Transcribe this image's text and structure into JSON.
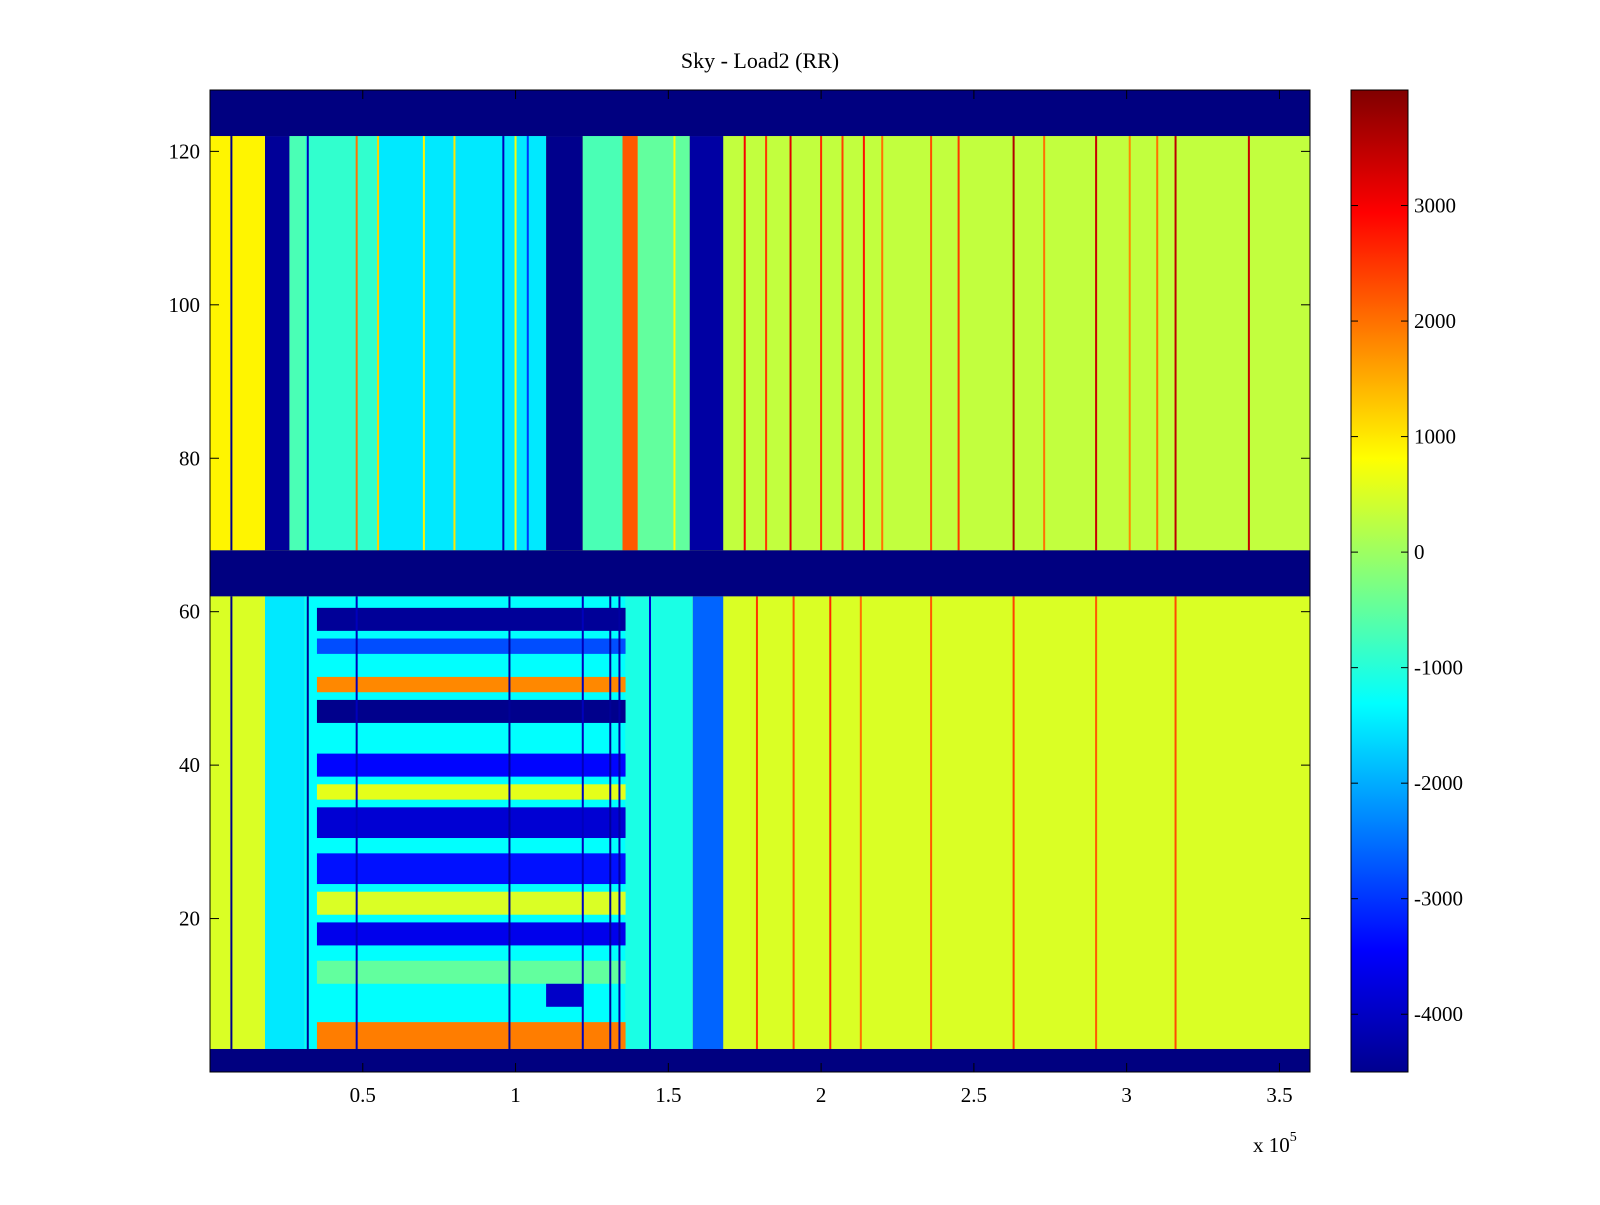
{
  "chart_data": {
    "type": "heatmap",
    "title": "Sky - Load2 (RR)",
    "xlabel": "",
    "ylabel": "",
    "x_exponent_label": "x 10",
    "x_exponent_power": "5",
    "xlim": [
      0,
      3.6
    ],
    "ylim": [
      0,
      128
    ],
    "x_ticks": [
      0.5,
      1,
      1.5,
      2,
      2.5,
      3,
      3.5
    ],
    "x_tick_labels": [
      "0.5",
      "1",
      "1.5",
      "2",
      "2.5",
      "3",
      "3.5"
    ],
    "y_ticks": [
      20,
      40,
      60,
      80,
      100,
      120
    ],
    "y_tick_labels": [
      "20",
      "40",
      "60",
      "80",
      "100",
      "120"
    ],
    "colorbar": {
      "colormap": "jet",
      "limits": [
        -4500,
        4000
      ],
      "ticks": [
        3000,
        2000,
        1000,
        0,
        -1000,
        -2000,
        -3000,
        -4000
      ],
      "tick_labels": [
        "3000",
        "2000",
        "1000",
        "0",
        "-1000",
        "-2000",
        "-3000",
        "-4000"
      ]
    },
    "background_value": 400,
    "masked_rows": [
      {
        "y0": 0,
        "y1": 3,
        "value": -4500
      },
      {
        "y0": 62,
        "y1": 68,
        "value": -4500
      },
      {
        "y0": 122,
        "y1": 128,
        "value": -4500
      }
    ],
    "upper_band": {
      "y0": 68,
      "y1": 122
    },
    "lower_band": {
      "y0": 3,
      "y1": 62
    },
    "upper_column_features": [
      {
        "x0": 0.0,
        "x1": 0.18,
        "value": 900
      },
      {
        "x0": 0.18,
        "x1": 0.26,
        "value": -4300
      },
      {
        "x0": 0.26,
        "x1": 0.31,
        "value": -700
      },
      {
        "x0": 0.31,
        "x1": 0.55,
        "value": -900
      },
      {
        "x0": 0.55,
        "x1": 1.1,
        "value": -1500
      },
      {
        "x0": 1.1,
        "x1": 1.22,
        "value": -4400
      },
      {
        "x0": 1.22,
        "x1": 1.35,
        "value": -700
      },
      {
        "x0": 1.35,
        "x1": 1.4,
        "value": 2200
      },
      {
        "x0": 1.4,
        "x1": 1.57,
        "value": -500
      },
      {
        "x0": 1.57,
        "x1": 1.68,
        "value": -4200
      },
      {
        "x0": 1.68,
        "x1": 3.6,
        "value": 300
      }
    ],
    "lower_column_features": [
      {
        "x0": 0.0,
        "x1": 0.18,
        "value": 500
      },
      {
        "x0": 0.18,
        "x1": 0.31,
        "value": -1500
      },
      {
        "x0": 0.31,
        "x1": 1.36,
        "value": -1300
      },
      {
        "x0": 1.36,
        "x1": 1.58,
        "value": -1100
      },
      {
        "x0": 1.58,
        "x1": 1.68,
        "value": -2600
      },
      {
        "x0": 1.68,
        "x1": 3.6,
        "value": 500
      }
    ],
    "lower_row_stripes": [
      {
        "y0": 57.5,
        "y1": 60.5,
        "x0": 0.35,
        "x1": 1.36,
        "value": -4300
      },
      {
        "y0": 54.5,
        "y1": 56.5,
        "x0": 0.35,
        "x1": 1.36,
        "value": -2800
      },
      {
        "y0": 49.5,
        "y1": 51.5,
        "x0": 0.35,
        "x1": 1.36,
        "value": 1800
      },
      {
        "y0": 45.5,
        "y1": 48.5,
        "x0": 0.35,
        "x1": 1.36,
        "value": -4400
      },
      {
        "y0": 38.5,
        "y1": 41.5,
        "x0": 0.35,
        "x1": 1.36,
        "value": -3400
      },
      {
        "y0": 35.5,
        "y1": 37.5,
        "x0": 0.35,
        "x1": 1.36,
        "value": 600
      },
      {
        "y0": 30.5,
        "y1": 34.5,
        "x0": 0.35,
        "x1": 1.36,
        "value": -3800
      },
      {
        "y0": 24.5,
        "y1": 28.5,
        "x0": 0.35,
        "x1": 1.36,
        "value": -3300
      },
      {
        "y0": 20.5,
        "y1": 23.5,
        "x0": 0.35,
        "x1": 1.36,
        "value": 500
      },
      {
        "y0": 16.5,
        "y1": 19.5,
        "x0": 0.35,
        "x1": 1.36,
        "value": -3600
      },
      {
        "y0": 11.5,
        "y1": 14.5,
        "x0": 0.35,
        "x1": 1.36,
        "value": -500
      },
      {
        "y0": 8.5,
        "y1": 11.5,
        "x0": 1.1,
        "x1": 1.22,
        "value": -3900
      },
      {
        "y0": 3.0,
        "y1": 6.5,
        "x0": 0.35,
        "x1": 1.36,
        "value": 1900
      }
    ],
    "upper_vertical_lines": [
      {
        "x": 0.07,
        "value": -4400
      },
      {
        "x": 0.32,
        "value": -4000
      },
      {
        "x": 0.48,
        "value": 2000
      },
      {
        "x": 0.55,
        "value": 1200
      },
      {
        "x": 0.7,
        "value": 900
      },
      {
        "x": 0.8,
        "value": 1000
      },
      {
        "x": 0.96,
        "value": -4000
      },
      {
        "x": 1.0,
        "value": 700
      },
      {
        "x": 1.04,
        "value": -3000
      },
      {
        "x": 1.52,
        "value": 800
      },
      {
        "x": 1.75,
        "value": 3000
      },
      {
        "x": 1.82,
        "value": 2500
      },
      {
        "x": 1.9,
        "value": 3200
      },
      {
        "x": 2.0,
        "value": 2600
      },
      {
        "x": 2.07,
        "value": 2400
      },
      {
        "x": 2.14,
        "value": 2800
      },
      {
        "x": 2.2,
        "value": 2000
      },
      {
        "x": 2.36,
        "value": 2300
      },
      {
        "x": 2.45,
        "value": 2500
      },
      {
        "x": 2.63,
        "value": 3600
      },
      {
        "x": 2.73,
        "value": 2000
      },
      {
        "x": 2.9,
        "value": 3400
      },
      {
        "x": 3.01,
        "value": 1800
      },
      {
        "x": 3.1,
        "value": 2000
      },
      {
        "x": 3.16,
        "value": 3500
      },
      {
        "x": 3.4,
        "value": 3400
      }
    ],
    "lower_vertical_lines": [
      {
        "x": 0.07,
        "value": -4400
      },
      {
        "x": 0.32,
        "value": -4300
      },
      {
        "x": 0.48,
        "value": -4000
      },
      {
        "x": 0.98,
        "value": -4300
      },
      {
        "x": 1.22,
        "value": -4000
      },
      {
        "x": 1.31,
        "value": -4300
      },
      {
        "x": 1.34,
        "value": -4200
      },
      {
        "x": 1.44,
        "value": -3800
      },
      {
        "x": 1.79,
        "value": 2500
      },
      {
        "x": 1.91,
        "value": 2300
      },
      {
        "x": 2.03,
        "value": 2600
      },
      {
        "x": 2.13,
        "value": 2000
      },
      {
        "x": 2.36,
        "value": 2200
      },
      {
        "x": 2.63,
        "value": 2400
      },
      {
        "x": 2.9,
        "value": 2200
      },
      {
        "x": 3.16,
        "value": 2300
      }
    ]
  }
}
